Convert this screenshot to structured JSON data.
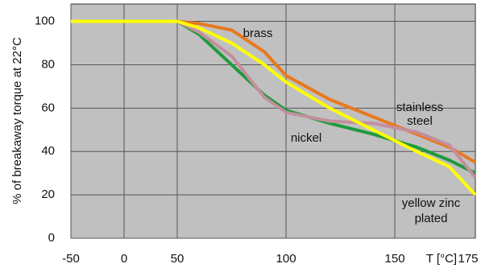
{
  "chart_data": {
    "type": "line",
    "y_label": "% of breakaway torque at 22°C",
    "x_label": "T [°C]",
    "x": [
      -50,
      0,
      50,
      60,
      75,
      90,
      100,
      120,
      140,
      160,
      175,
      187
    ],
    "series": [
      {
        "name": "brass",
        "color": "#e8781e",
        "values": [
          100,
          100,
          100,
          99,
          96,
          86,
          75,
          64,
          56,
          48,
          42,
          35
        ]
      },
      {
        "name": "nickel",
        "color": "#1f9a3c",
        "values": [
          100,
          100,
          100,
          94,
          80,
          66,
          59,
          53,
          48,
          42,
          36,
          30
        ]
      },
      {
        "name": "stainless steel",
        "color": "#c48e9e",
        "values": [
          100,
          100,
          100,
          95,
          84,
          65,
          58,
          54,
          53,
          49,
          43,
          28
        ]
      },
      {
        "name": "yellow zinc plated",
        "color": "#ffff00",
        "values": [
          100,
          100,
          100,
          97,
          90,
          80,
          72,
          60,
          50,
          40,
          33,
          20
        ]
      }
    ],
    "annotations": [
      "brass",
      "nickel",
      "stainless",
      "steel",
      "yellow zinc",
      "plated"
    ],
    "xlim": [
      -50,
      187
    ],
    "ylim": [
      0,
      108
    ],
    "xticks": [
      -50,
      0,
      50,
      100,
      150,
      175
    ],
    "yticks": [
      0,
      20,
      40,
      60,
      80,
      100
    ],
    "grid": true
  }
}
